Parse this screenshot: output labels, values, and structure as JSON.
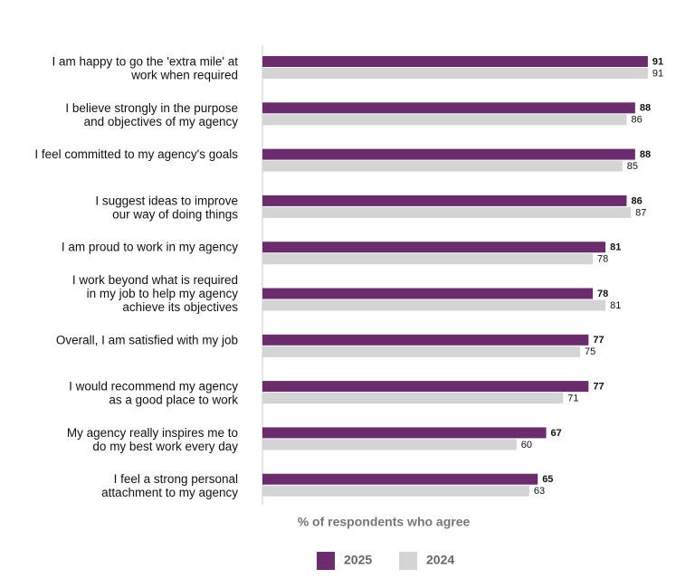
{
  "chart_data": {
    "type": "hbar",
    "x_label": "% of respondents who agree",
    "categories": [
      "I am happy to go the 'extra mile' at\nwork when required",
      "I believe strongly in the purpose\nand objectives of my agency",
      "I feel committed to my agency's goals",
      "I suggest ideas to improve\nour way of doing things",
      "I am proud to work in my agency",
      "I work beyond what is required\nin my job to help my agency\nachieve its objectives",
      "Overall, I am satisfied with my job",
      "I would recommend my agency\nas a good place to work",
      "My agency really inspires me to\ndo my best work every day",
      "I feel a strong personal\nattachment to my agency"
    ],
    "series": [
      {
        "name": "2025",
        "color": "#6a2c6c",
        "values": [
          91,
          88,
          88,
          86,
          81,
          78,
          77,
          77,
          67,
          65
        ]
      },
      {
        "name": "2024",
        "color": "#d4d4d6",
        "values": [
          91,
          86,
          85,
          87,
          78,
          81,
          75,
          71,
          60,
          63
        ]
      }
    ],
    "xlim": [
      0,
      100
    ],
    "legend": "bottom"
  }
}
